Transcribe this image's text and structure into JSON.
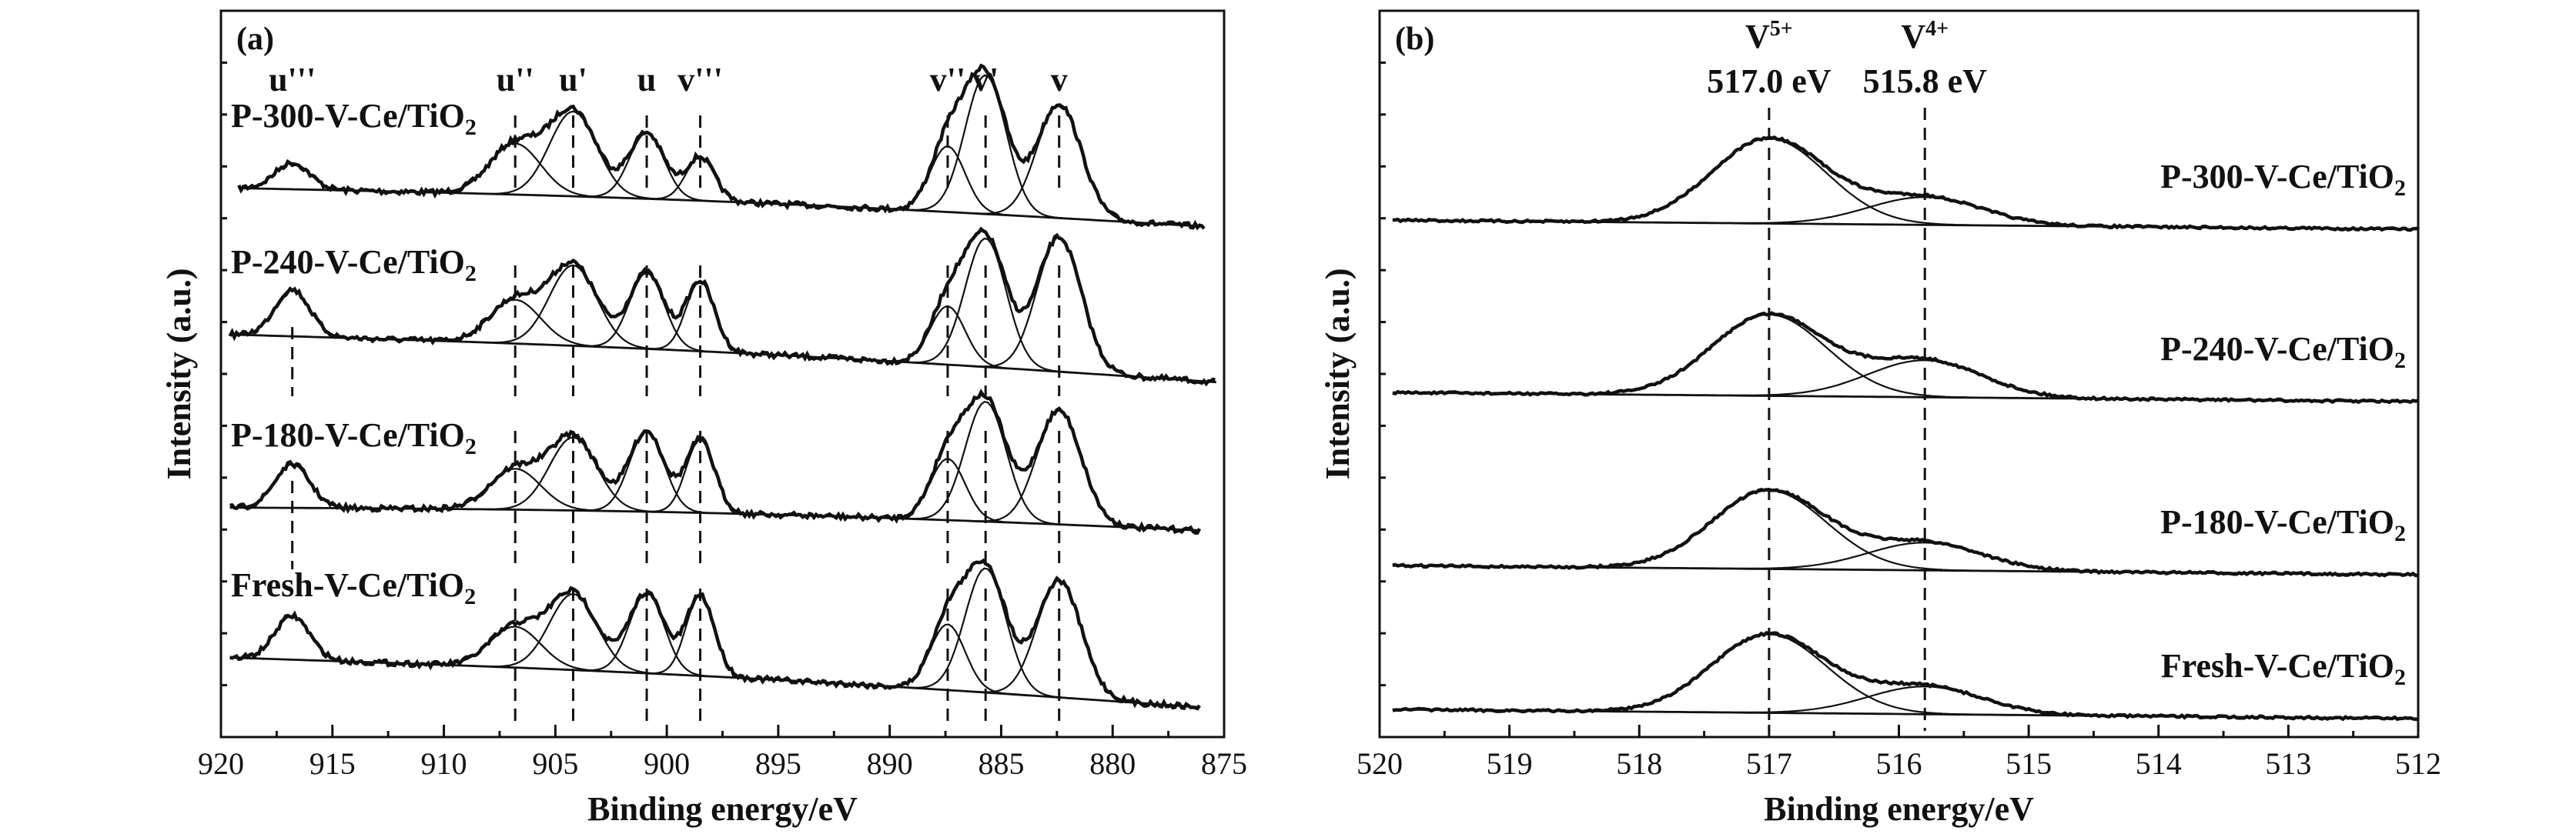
{
  "chart_data": [
    {
      "type": "line",
      "panel_label": "(a)",
      "xlabel": "Binding energy/eV",
      "ylabel": "Intensity (a.u.)",
      "xlim": [
        920,
        875
      ],
      "x_reversed": true,
      "xticks": [
        920,
        915,
        910,
        905,
        900,
        895,
        890,
        885,
        880,
        875
      ],
      "ref_lines": [
        {
          "x": 916.8,
          "label": "u'''"
        },
        {
          "x": 906.8,
          "label": "u''"
        },
        {
          "x": 904.2,
          "label": "u'"
        },
        {
          "x": 900.9,
          "label": "u"
        },
        {
          "x": 898.5,
          "label": "v'''"
        },
        {
          "x": 887.4,
          "label": "v''"
        },
        {
          "x": 885.7,
          "label": "v'"
        },
        {
          "x": 882.4,
          "label": "v"
        }
      ],
      "series": [
        {
          "name": "P-300-V-Ce/TiO2",
          "sample": "P-300-V-Ce/TiO",
          "subscript": "2"
        },
        {
          "name": "P-240-V-Ce/TiO2",
          "sample": "P-240-V-Ce/TiO",
          "subscript": "2"
        },
        {
          "name": "P-180-V-Ce/TiO2",
          "sample": "P-180-V-Ce/TiO",
          "subscript": "2"
        },
        {
          "name": "Fresh-V-Ce/TiO2",
          "sample": "Fresh-V-Ce/TiO",
          "subscript": "2"
        }
      ],
      "peak_components_eV": [
        916.8,
        906.8,
        904.2,
        900.9,
        898.5,
        887.4,
        885.7,
        882.4
      ]
    },
    {
      "type": "line",
      "panel_label": "(b)",
      "xlabel": "Binding energy/eV",
      "ylabel": "Intensity (a.u.)",
      "xlim": [
        520,
        512
      ],
      "x_reversed": true,
      "xticks": [
        520,
        519,
        518,
        517,
        516,
        515,
        514,
        513,
        512
      ],
      "ref_lines": [
        {
          "x": 517.0,
          "species": "V",
          "charge": "5+",
          "energy_label": "517.0 eV"
        },
        {
          "x": 515.8,
          "species": "V",
          "charge": "4+",
          "energy_label": "515.8 eV"
        }
      ],
      "series": [
        {
          "name": "P-300-V-Ce/TiO2",
          "sample": "P-300-V-Ce/TiO",
          "subscript": "2"
        },
        {
          "name": "P-240-V-Ce/TiO2",
          "sample": "P-240-V-Ce/TiO",
          "subscript": "2"
        },
        {
          "name": "P-180-V-Ce/TiO2",
          "sample": "P-180-V-Ce/TiO",
          "subscript": "2"
        },
        {
          "name": "Fresh-V-Ce/TiO2",
          "sample": "Fresh-V-Ce/TiO",
          "subscript": "2"
        }
      ],
      "peak_components_eV": [
        517.0,
        515.8
      ]
    }
  ]
}
